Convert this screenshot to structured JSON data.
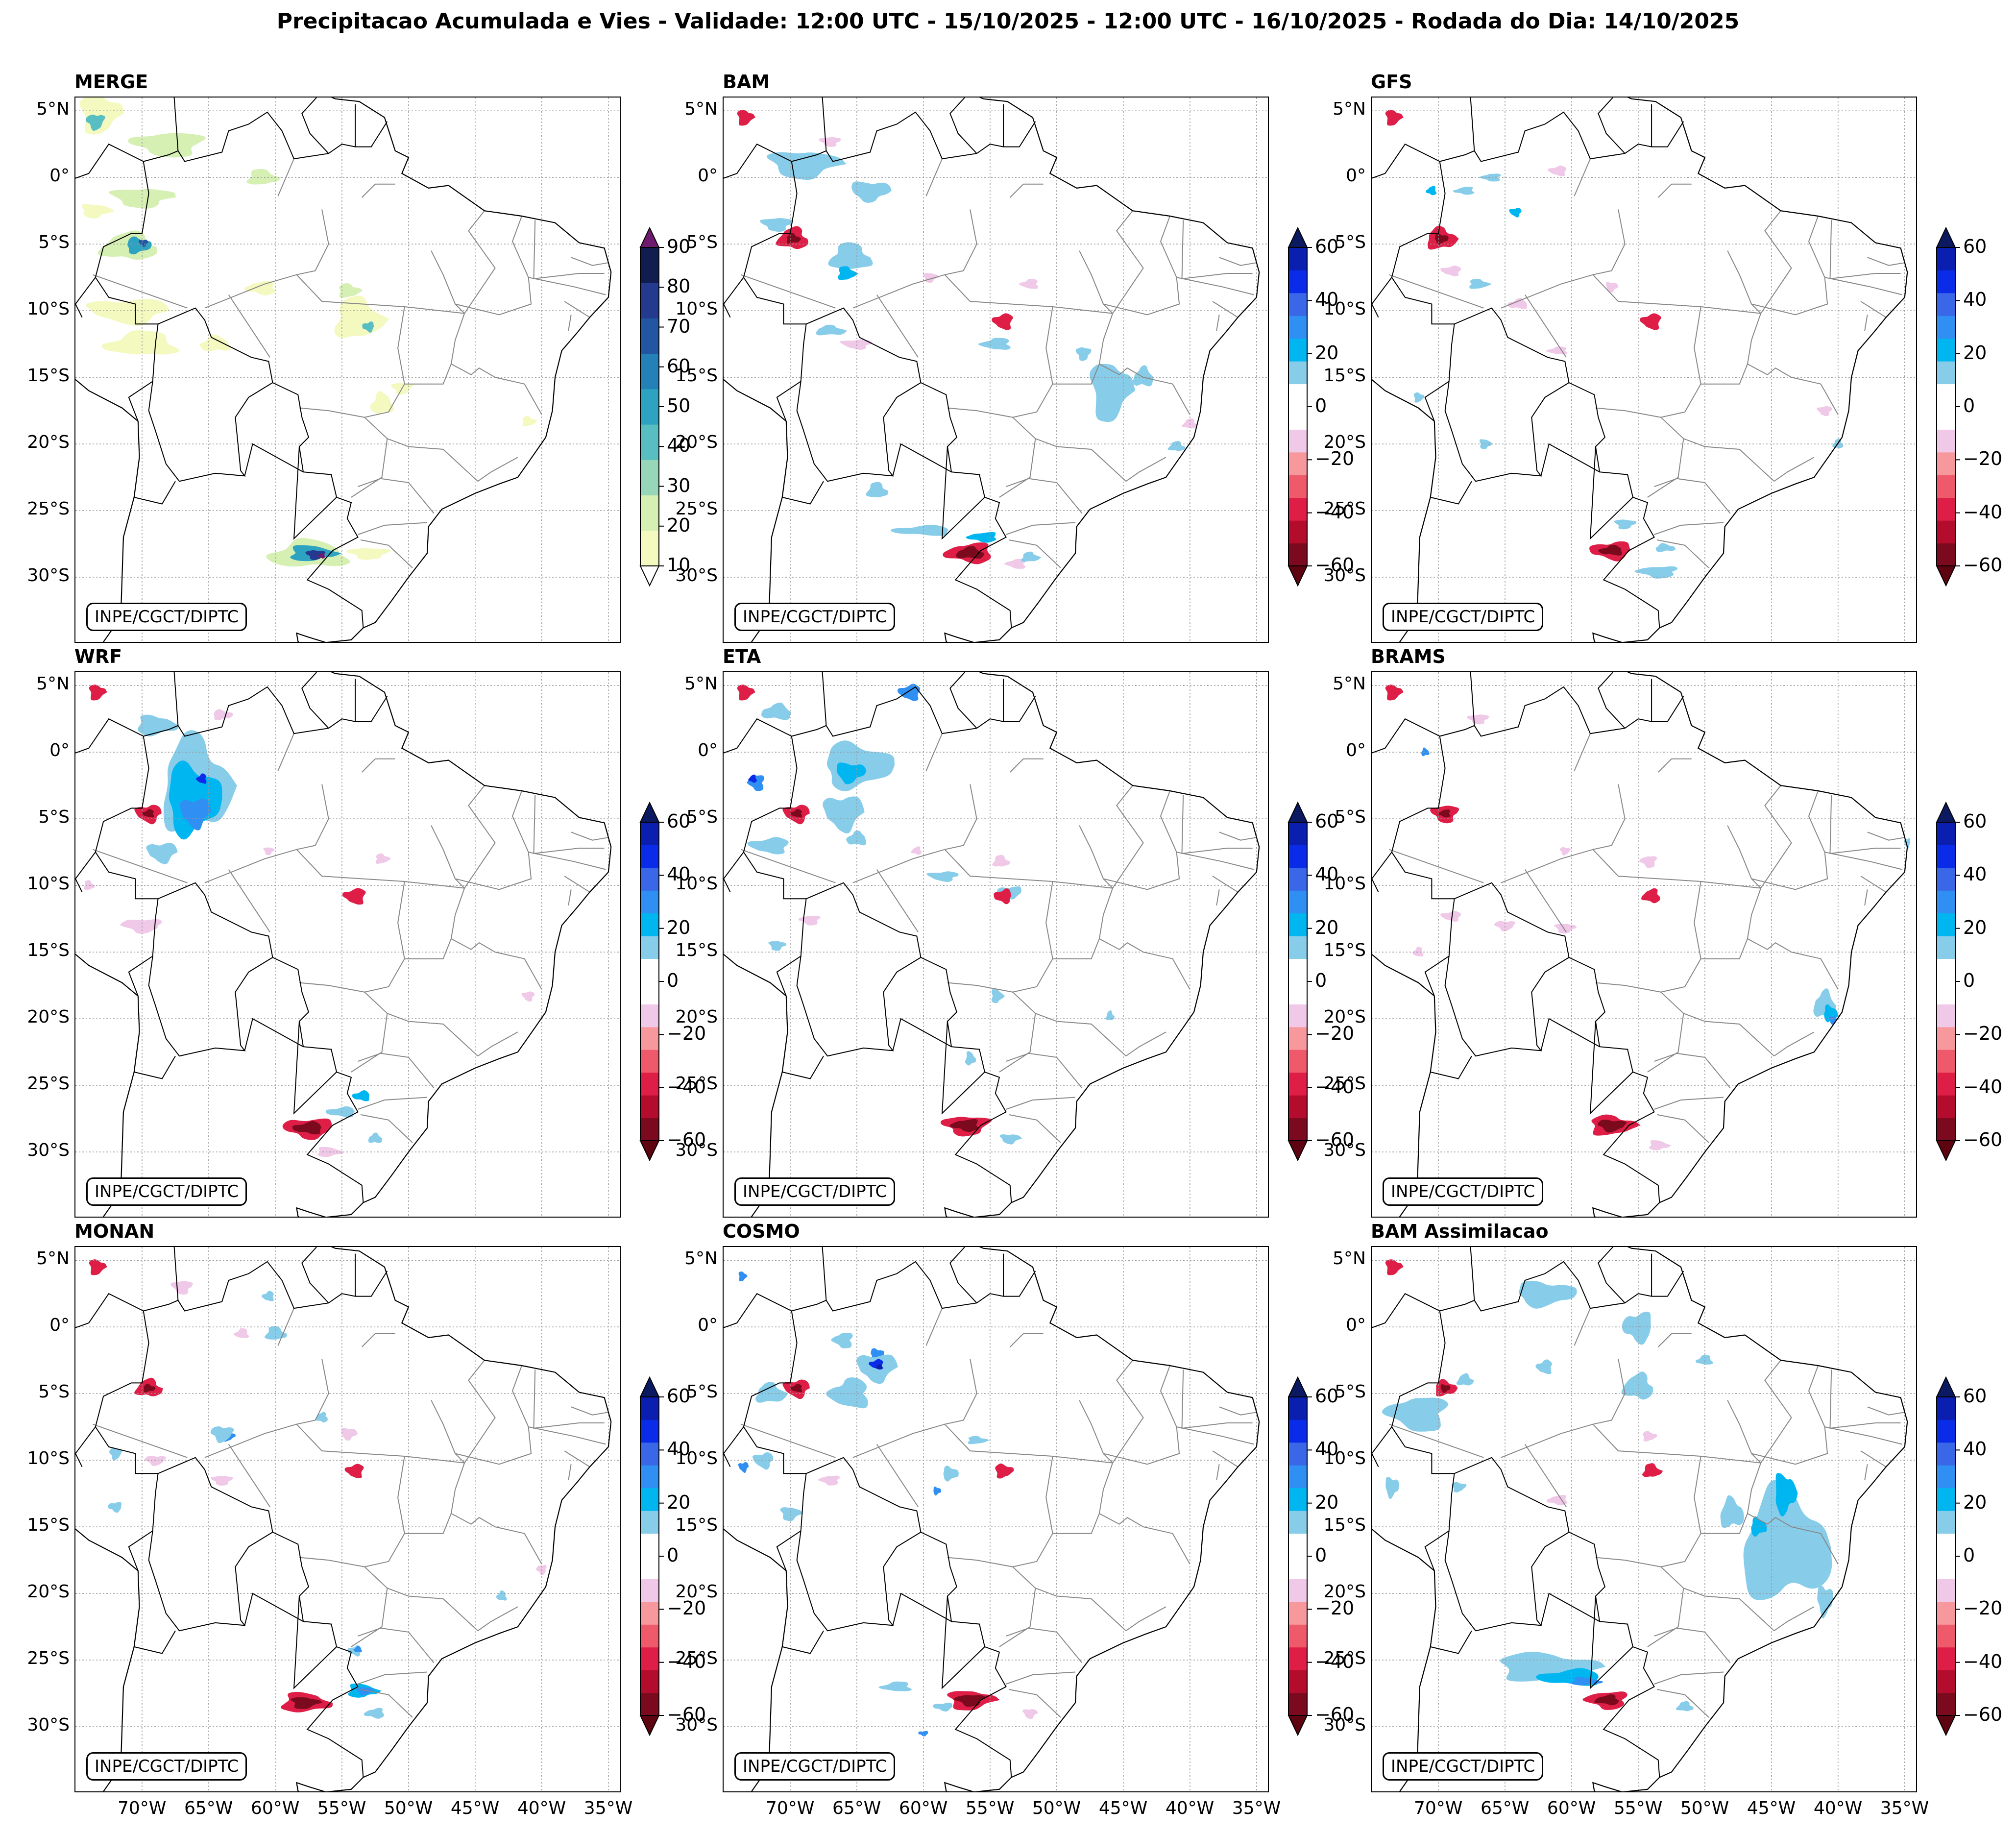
{
  "figure": {
    "title": "Precipitacao Acumulada e Vies - Validade: 12:00 UTC - 15/10/2025 - 12:00 UTC - 16/10/2025 - Rodada do Dia: 14/10/2025",
    "credit": "INPE/CGCT/DIPTC"
  },
  "axes": {
    "lat_ticks": [
      "5°N",
      "0°",
      "5°S",
      "10°S",
      "15°S",
      "20°S",
      "25°S",
      "30°S"
    ],
    "lon_ticks": [
      "70°W",
      "65°W",
      "60°W",
      "55°W",
      "50°W",
      "45°W",
      "40°W",
      "35°W"
    ],
    "lon_range": [
      -75,
      -34
    ],
    "lat_range": [
      -35,
      6
    ]
  },
  "colorbars": {
    "precip": {
      "labels": [
        "90",
        "80",
        "70",
        "60",
        "50",
        "40",
        "30",
        "20",
        "10"
      ],
      "colors": [
        "#f4f9c0",
        "#d6efb3",
        "#97d6b9",
        "#59bec1",
        "#2da2c1",
        "#2381b8",
        "#2356a2",
        "#243a8f",
        "#111d4f"
      ],
      "tip_colors": [
        "#ffffff",
        "#6e1a6e"
      ]
    },
    "bias": {
      "labels": [
        "60",
        "40",
        "20",
        "0",
        "−20",
        "−40",
        "−60"
      ],
      "colors": [
        "#7c0a1e",
        "#b40c2c",
        "#de1e46",
        "#ee5a6a",
        "#f7989c",
        "#f0c8e8",
        "#ffffff",
        "#ffffff",
        "#87cdea",
        "#00b6f0",
        "#2f8ff2",
        "#3a67e8",
        "#0a2ce8",
        "#0a1fb0"
      ],
      "tip_colors": [
        "#5e0410",
        "#0b1a60"
      ]
    }
  },
  "panels": [
    {
      "id": "merge",
      "title": "MERGE",
      "kind": "precip"
    },
    {
      "id": "bam",
      "title": "BAM",
      "kind": "bias"
    },
    {
      "id": "gfs",
      "title": "GFS",
      "kind": "bias"
    },
    {
      "id": "wrf",
      "title": "WRF",
      "kind": "bias"
    },
    {
      "id": "eta",
      "title": "ETA",
      "kind": "bias"
    },
    {
      "id": "brams",
      "title": "BRAMS",
      "kind": "bias"
    },
    {
      "id": "monan",
      "title": "MONAN",
      "kind": "bias"
    },
    {
      "id": "cosmo",
      "title": "COSMO",
      "kind": "bias"
    },
    {
      "id": "bam_assim",
      "title": "BAM Assimilacao",
      "kind": "bias"
    }
  ]
}
